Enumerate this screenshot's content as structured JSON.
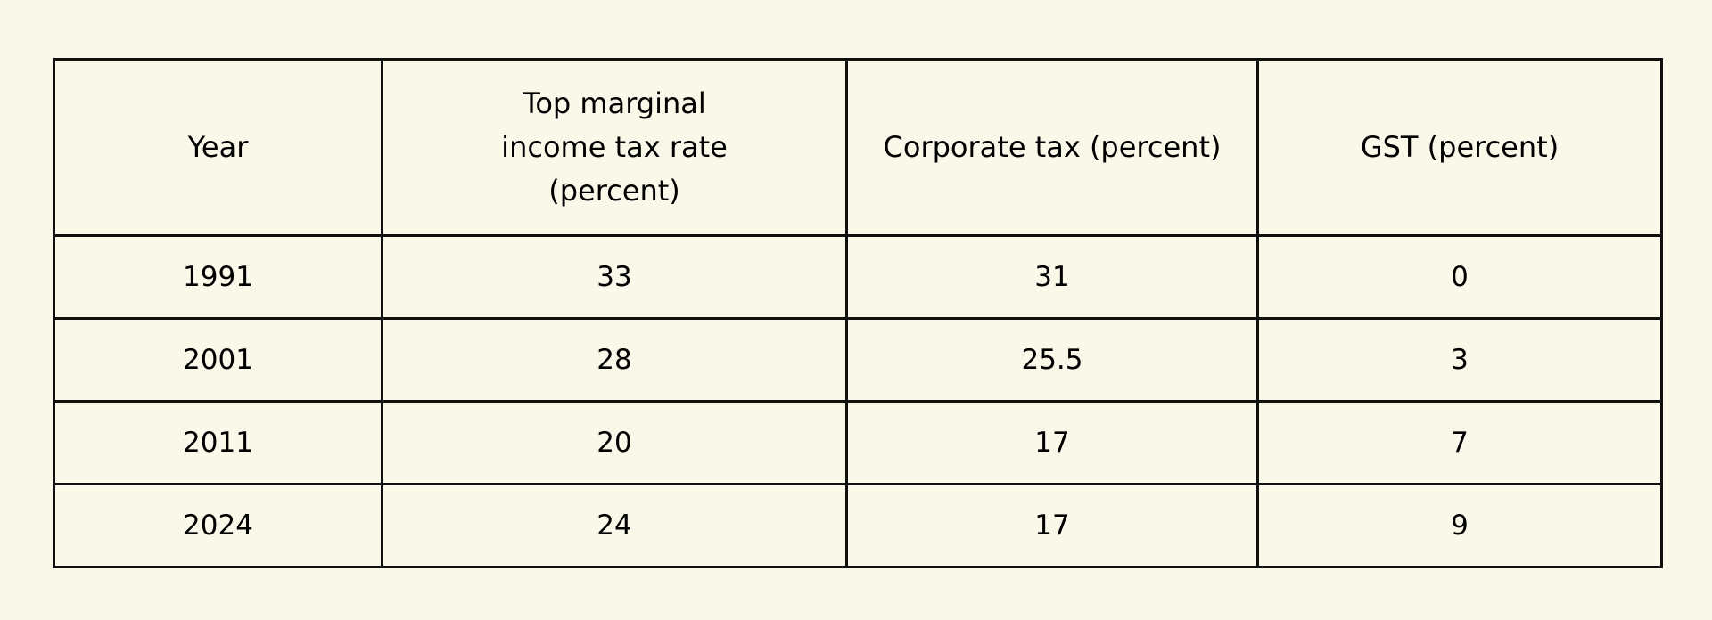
{
  "table": {
    "headers": [
      "Year",
      "Top marginal income tax rate (percent)",
      "Corporate tax (percent)",
      "GST (percent)"
    ],
    "rows": [
      [
        "1991",
        "33",
        "31",
        "0"
      ],
      [
        "2001",
        "28",
        "25.5",
        "3"
      ],
      [
        "2011",
        "20",
        "17",
        "7"
      ],
      [
        "2024",
        "24",
        "17",
        "9"
      ]
    ]
  }
}
